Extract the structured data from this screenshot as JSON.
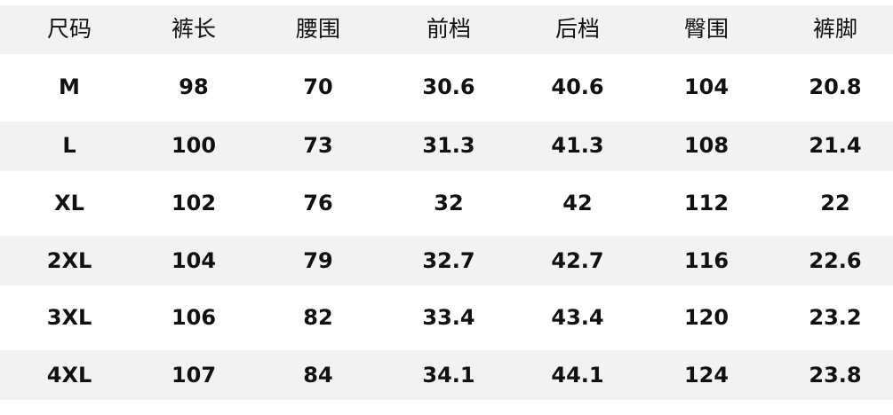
{
  "headers": [
    "尺码",
    "裤长",
    "腰围",
    "前档",
    "后档",
    "臀围",
    "裤脚"
  ],
  "rows": [
    [
      "M",
      "98",
      "70",
      "30.6",
      "40.6",
      "104",
      "20.8"
    ],
    [
      "L",
      "100",
      "73",
      "31.3",
      "41.3",
      "108",
      "21.4"
    ],
    [
      "XL",
      "102",
      "76",
      "32",
      "42",
      "112",
      "22"
    ],
    [
      "2XL",
      "104",
      "79",
      "32.7",
      "42.7",
      "116",
      "22.6"
    ],
    [
      "3XL",
      "106",
      "82",
      "33.4",
      "43.4",
      "120",
      "23.2"
    ],
    [
      "4XL",
      "107",
      "84",
      "34.1",
      "44.1",
      "124",
      "23.8"
    ]
  ],
  "colors": {
    "stripe": "#f2f2f2",
    "text": "#111111"
  }
}
